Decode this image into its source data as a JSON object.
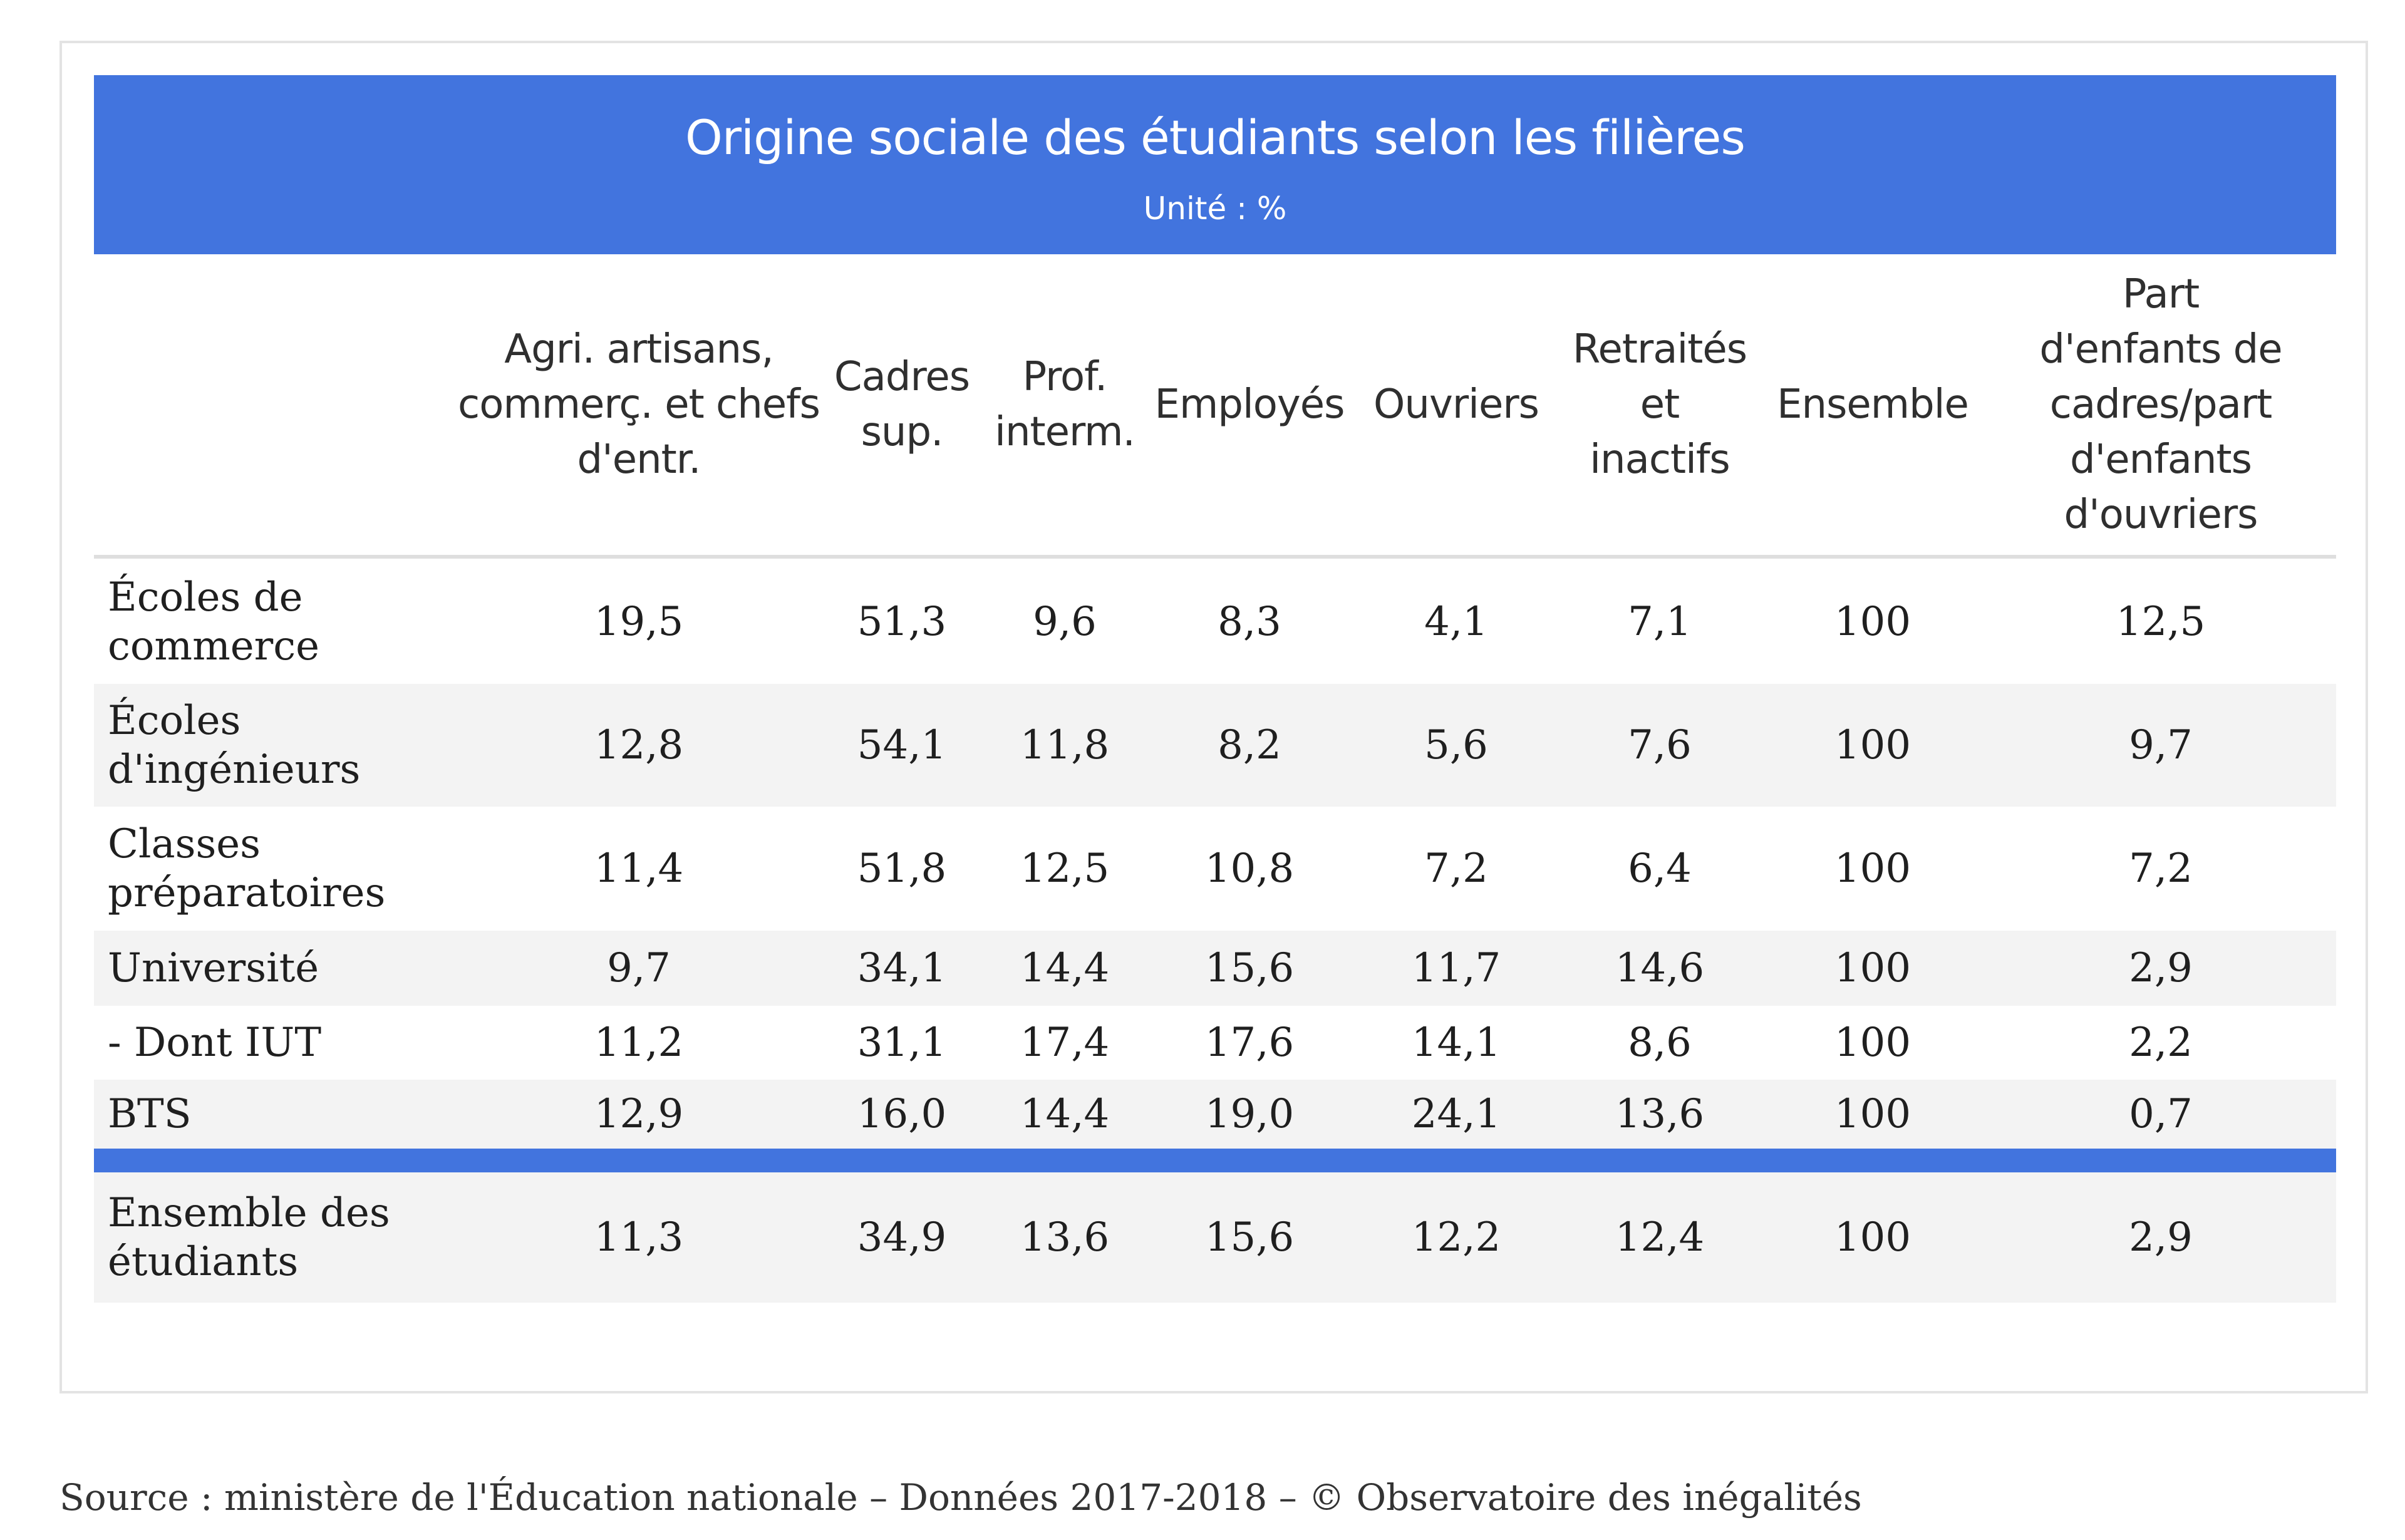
{
  "chart_data": {
    "type": "table",
    "title": "Origine sociale des étudiants selon les filières",
    "subtitle": "Unité : %",
    "columns": [
      "",
      "Agri. artisans,\ncommerç. et chefs\nd'entr.",
      "Cadres\nsup.",
      "Prof.\ninterm.",
      "Employés",
      "Ouvriers",
      "Retraités\net\ninactifs",
      "Ensemble",
      "Part\nd'enfants de\ncadres/part\nd'enfants\nd'ouvriers"
    ],
    "rows": [
      {
        "label": "Écoles de\ncommerce",
        "values": [
          "19,5",
          "51,3",
          "9,6",
          "8,3",
          "4,1",
          "7,1",
          "100",
          "12,5"
        ]
      },
      {
        "label": "Écoles\nd'ingénieurs",
        "values": [
          "12,8",
          "54,1",
          "11,8",
          "8,2",
          "5,6",
          "7,6",
          "100",
          "9,7"
        ]
      },
      {
        "label": "Classes\npréparatoires",
        "values": [
          "11,4",
          "51,8",
          "12,5",
          "10,8",
          "7,2",
          "6,4",
          "100",
          "7,2"
        ]
      },
      {
        "label": "Université",
        "values": [
          "9,7",
          "34,1",
          "14,4",
          "15,6",
          "11,7",
          "14,6",
          "100",
          "2,9"
        ]
      },
      {
        "label": "- Dont IUT",
        "values": [
          "11,2",
          "31,1",
          "17,4",
          "17,6",
          "14,1",
          "8,6",
          "100",
          "2,2"
        ]
      },
      {
        "label": "BTS",
        "values": [
          "12,9",
          "16,0",
          "14,4",
          "19,0",
          "24,1",
          "13,6",
          "100",
          "0,7"
        ]
      }
    ],
    "total_row": {
      "label": "Ensemble des\nétudiants",
      "values": [
        "11,3",
        "34,9",
        "13,6",
        "15,6",
        "12,2",
        "12,4",
        "100",
        "2,9"
      ]
    }
  },
  "source": "Source : ministère de l'Éducation nationale – Données 2017-2018 – © Observatoire des inégalités",
  "colors": {
    "banner": "#4274de",
    "row_shade": "#f3f3f3",
    "divider": "#dedede"
  }
}
